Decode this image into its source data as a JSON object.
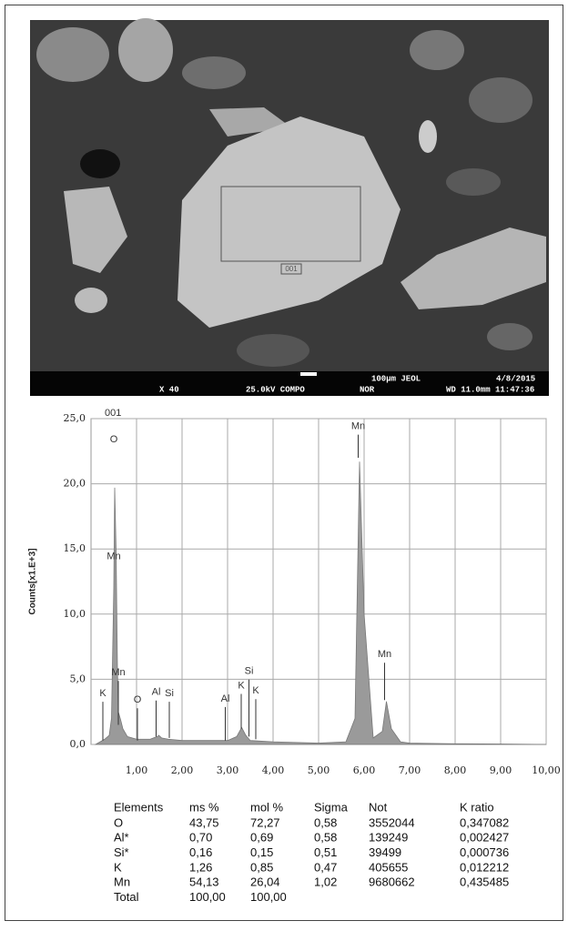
{
  "sem_image": {
    "magnification": "X 40",
    "voltage": "25.0kV COMPO",
    "mode": "NOR",
    "scale": "100µm JEOL",
    "date": "4/8/2015",
    "wd_time": "WD 11.0mm 11:47:36",
    "area_label": "001"
  },
  "chart_data": {
    "type": "area",
    "label": "001",
    "y_label": "Counts[x1.E+3]",
    "x": [
      0.1,
      0.2,
      0.3,
      0.4,
      0.45,
      0.5,
      0.52,
      0.55,
      0.58,
      0.6,
      0.65,
      0.7,
      0.8,
      1.0,
      1.3,
      1.45,
      1.49,
      1.55,
      1.7,
      2.0,
      2.5,
      3.0,
      3.2,
      3.31,
      3.4,
      3.5,
      4.0,
      5.0,
      5.6,
      5.8,
      5.9,
      6.0,
      6.2,
      6.4,
      6.49,
      6.6,
      6.8,
      7.0,
      8.0,
      9.0,
      10.0
    ],
    "series": [
      {
        "color": "#9a9a9a",
        "values": [
          0,
          0.2,
          0.4,
          0.7,
          2.0,
          12.0,
          19.7,
          15.0,
          6.0,
          2.5,
          1.9,
          1.2,
          0.6,
          0.4,
          0.4,
          0.6,
          0.7,
          0.5,
          0.4,
          0.3,
          0.3,
          0.3,
          0.6,
          1.3,
          0.7,
          0.3,
          0.2,
          0.1,
          0.2,
          2.0,
          21.7,
          10.0,
          0.5,
          1.0,
          3.3,
          1.2,
          0.2,
          0.1,
          0.05,
          0.03,
          0.0
        ]
      }
    ],
    "xlim": [
      0,
      10
    ],
    "xticks": [
      {
        "value": 1,
        "label": "1,00"
      },
      {
        "value": 2,
        "label": "2,00"
      },
      {
        "value": 3,
        "label": "3,00"
      },
      {
        "value": 4,
        "label": "4,00"
      },
      {
        "value": 5,
        "label": "5,00"
      },
      {
        "value": 6,
        "label": "6,00"
      },
      {
        "value": 7,
        "label": "7,00"
      },
      {
        "value": 8,
        "label": "8,00"
      },
      {
        "value": 9,
        "label": "9,00"
      },
      {
        "value": 10,
        "label": "10,00"
      }
    ],
    "ylim": [
      0,
      25
    ],
    "yticks": [
      {
        "value": 0,
        "label": "0,0"
      },
      {
        "value": 5,
        "label": "5,0"
      },
      {
        "value": 10,
        "label": "10,0"
      },
      {
        "value": 15,
        "label": "15,0"
      },
      {
        "value": 20,
        "label": "20,0"
      },
      {
        "value": 25,
        "label": "25,0"
      }
    ],
    "grid": true,
    "annotations": [
      "O",
      "Mn",
      "Mn",
      "K",
      "O",
      "Al",
      "Si",
      "Al",
      "K",
      "Si",
      "K",
      "Mn",
      "Mn"
    ]
  },
  "table": {
    "header": [
      "Elements",
      "ms %",
      "mol %",
      "Sigma",
      "Not",
      "K ratio"
    ],
    "rows": [
      [
        "O",
        "43,75",
        "72,27",
        "0,58",
        "3552044",
        "0,347082"
      ],
      [
        "Al*",
        "0,70",
        "0,69",
        "0,58",
        "139249",
        "0,002427"
      ],
      [
        "Si*",
        "0,16",
        "0,15",
        "0,51",
        "39499",
        "0,000736"
      ],
      [
        "K",
        "1,26",
        "0,85",
        "0,47",
        "405655",
        "0,012212"
      ],
      [
        "Mn",
        "54,13",
        "26,04",
        "1,02",
        "9680662",
        "0,435485"
      ],
      [
        "Total",
        "100,00",
        "100,00"
      ]
    ]
  }
}
